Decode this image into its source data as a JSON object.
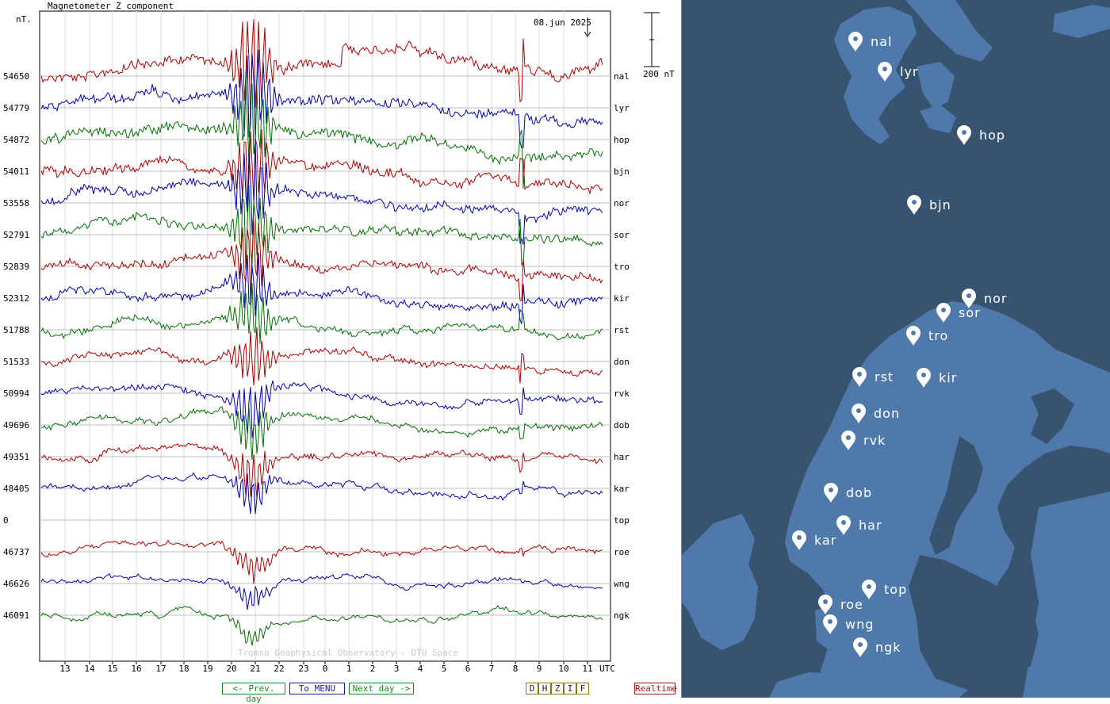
{
  "plot": {
    "title": "Magnetometer Z component",
    "unit_label": "nT.",
    "date_label": "08.jun 2025",
    "scale_label": "200 nT",
    "watermark": "Tromso Geophysical Observatory - DTU Space",
    "utc_label": "UTC",
    "x_ticks": [
      "13",
      "14",
      "15",
      "16",
      "17",
      "18",
      "19",
      "20",
      "21",
      "22",
      "23",
      "0",
      "1",
      "2",
      "3",
      "4",
      "5",
      "6",
      "7",
      "8",
      "9",
      "10",
      "11"
    ],
    "stations": [
      {
        "code": "nal",
        "baseline": "54650",
        "color": "#b00000"
      },
      {
        "code": "lyr",
        "baseline": "54779",
        "color": "#0000b0"
      },
      {
        "code": "hop",
        "baseline": "54872",
        "color": "#007000"
      },
      {
        "code": "bjn",
        "baseline": "54011",
        "color": "#b00000"
      },
      {
        "code": "nor",
        "baseline": "53558",
        "color": "#0000b0"
      },
      {
        "code": "sor",
        "baseline": "52791",
        "color": "#007000"
      },
      {
        "code": "tro",
        "baseline": "52839",
        "color": "#b00000"
      },
      {
        "code": "kir",
        "baseline": "52312",
        "color": "#0000b0"
      },
      {
        "code": "rst",
        "baseline": "51788",
        "color": "#007000"
      },
      {
        "code": "don",
        "baseline": "51533",
        "color": "#b00000"
      },
      {
        "code": "rvk",
        "baseline": "50994",
        "color": "#0000b0"
      },
      {
        "code": "dob",
        "baseline": "49696",
        "color": "#007000"
      },
      {
        "code": "har",
        "baseline": "49351",
        "color": "#b00000"
      },
      {
        "code": "kar",
        "baseline": "48405",
        "color": "#0000b0"
      },
      {
        "code": "top",
        "baseline": "0",
        "color": "#007000"
      },
      {
        "code": "roe",
        "baseline": "46737",
        "color": "#b00000"
      },
      {
        "code": "wng",
        "baseline": "46626",
        "color": "#0000b0"
      },
      {
        "code": "ngk",
        "baseline": "46091",
        "color": "#007000"
      }
    ]
  },
  "nav": {
    "prev_label": "<- Prev. day",
    "menu_label": "To MENU",
    "next_label": "Next day ->",
    "components": [
      "D",
      "H",
      "Z",
      "I",
      "F"
    ],
    "realtime_label": "Realtime"
  },
  "map": {
    "sea_color": "#38536f",
    "land_color": "#4f79aa",
    "pins": [
      "nal",
      "lyr",
      "hop",
      "bjn",
      "nor",
      "sor",
      "tro",
      "kir",
      "rst",
      "don",
      "rvk",
      "dob",
      "har",
      "kar",
      "top",
      "roe",
      "wng",
      "ngk"
    ]
  }
}
